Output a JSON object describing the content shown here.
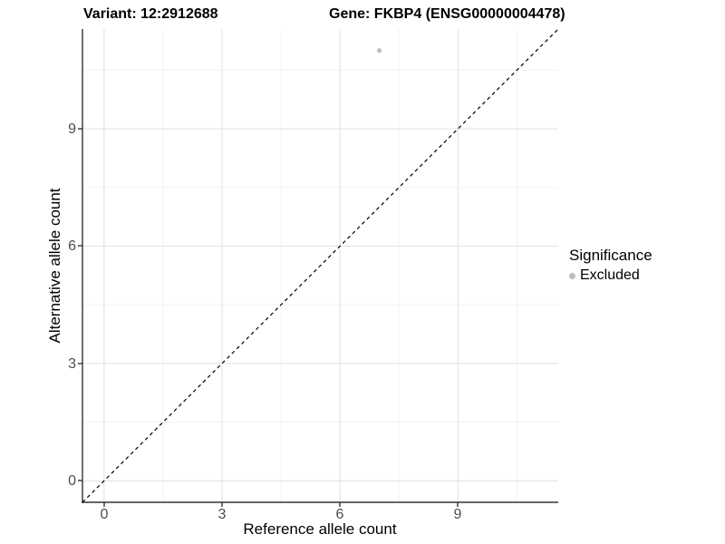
{
  "chart_data": {
    "type": "scatter",
    "titles": {
      "variant": "Variant: 12:2912688",
      "gene": "Gene: FKBP4 (ENSG00000004478)"
    },
    "xlabel": "Reference allele count",
    "ylabel": "Alternative allele count",
    "x_ticks": [
      "0",
      "3",
      "6",
      "9"
    ],
    "y_ticks": [
      "0",
      "3",
      "6",
      "9"
    ],
    "x_tick_values": [
      0,
      3,
      6,
      9
    ],
    "y_tick_values": [
      0,
      3,
      6,
      9
    ],
    "x_minor_values": [
      1.5,
      4.5,
      7.5,
      10.5
    ],
    "y_minor_values": [
      1.5,
      4.5,
      7.5,
      10.5
    ],
    "xlim": [
      -0.55,
      11.55
    ],
    "ylim": [
      -0.55,
      11.55
    ],
    "grid": "major+minor",
    "points": [
      {
        "x": 7,
        "y": 11,
        "significance": "Excluded"
      }
    ],
    "identity_line": {
      "style": "dashed",
      "x1": -0.55,
      "y1": -0.55,
      "x2": 11.55,
      "y2": 11.55
    },
    "legend": {
      "position": "right",
      "title": "Significance",
      "items": [
        {
          "label": "Excluded",
          "color": "#bebebe"
        }
      ]
    },
    "colors": {
      "excluded_point": "#bebebe",
      "axis_line": "#333333",
      "tick_label": "#4d4d4d",
      "grid_major": "#e3e3e3",
      "grid_minor": "#f0f0f0",
      "identity_line": "#000000",
      "background": "#ffffff"
    }
  }
}
